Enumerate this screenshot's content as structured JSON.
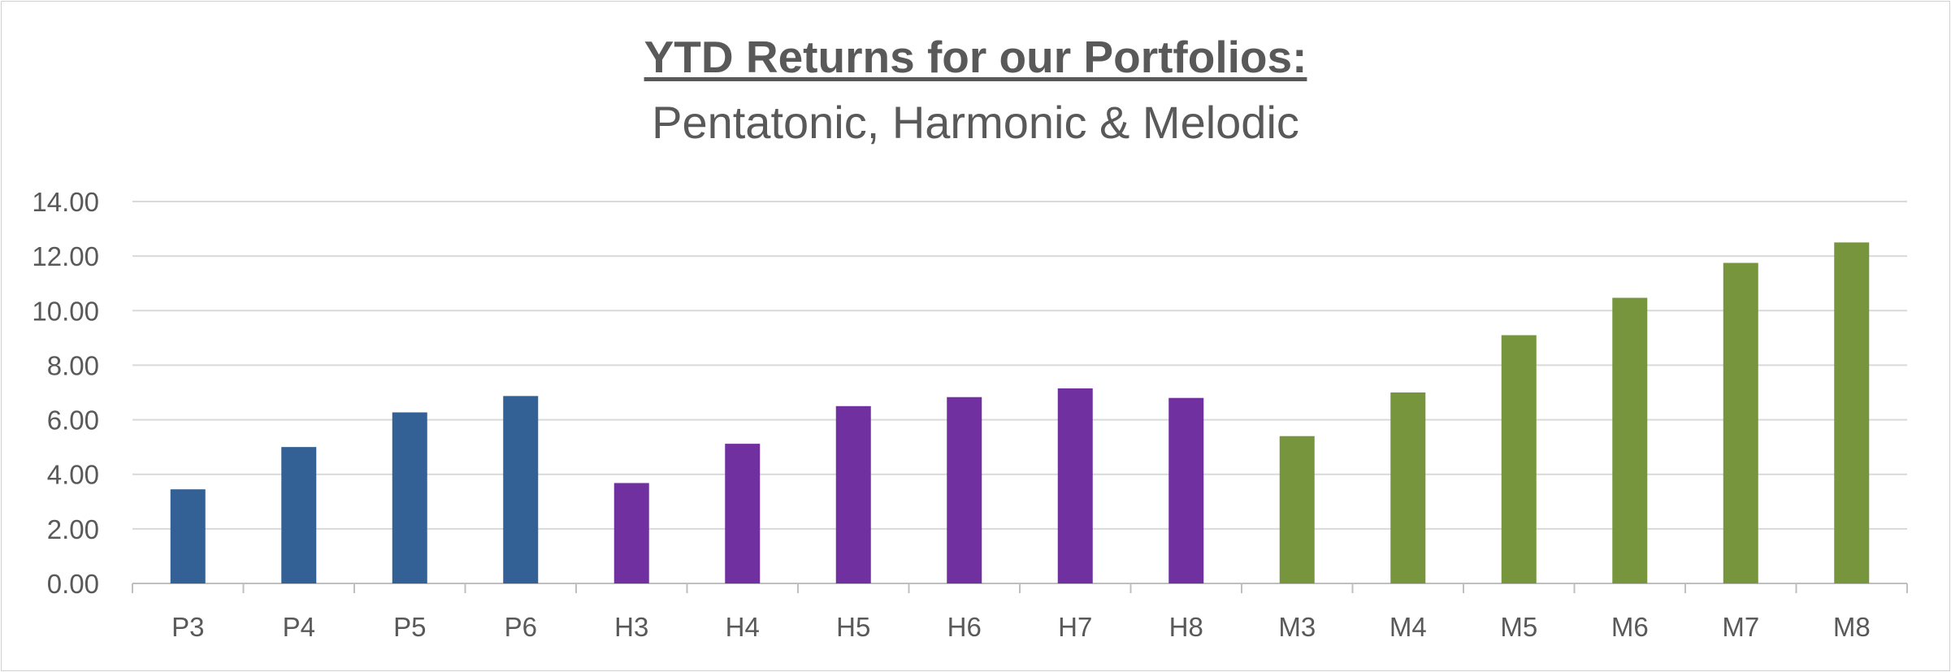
{
  "chart_data": {
    "type": "bar",
    "title": "YTD Returns for our Portfolios:",
    "subtitle": "Pentatonic, Harmonic & Melodic",
    "xlabel": "",
    "ylabel": "",
    "categories": [
      "P3",
      "P4",
      "P5",
      "P6",
      "H3",
      "H4",
      "H5",
      "H6",
      "H7",
      "H8",
      "M3",
      "M4",
      "M5",
      "M6",
      "M7",
      "M8"
    ],
    "values": [
      3.45,
      5.0,
      6.27,
      6.87,
      3.68,
      5.12,
      6.5,
      6.83,
      7.15,
      6.8,
      5.4,
      7.0,
      9.1,
      10.47,
      11.75,
      12.5
    ],
    "bar_colors": [
      "#336195",
      "#336195",
      "#336195",
      "#336195",
      "#7030a0",
      "#7030a0",
      "#7030a0",
      "#7030a0",
      "#7030a0",
      "#7030a0",
      "#77953d",
      "#77953d",
      "#77953d",
      "#77953d",
      "#77953d",
      "#77953d"
    ],
    "ylim": [
      0,
      14
    ],
    "yticks": [
      "0.00",
      "2.00",
      "4.00",
      "6.00",
      "8.00",
      "10.00",
      "12.00",
      "14.00"
    ],
    "grid": true,
    "legend": "none"
  }
}
